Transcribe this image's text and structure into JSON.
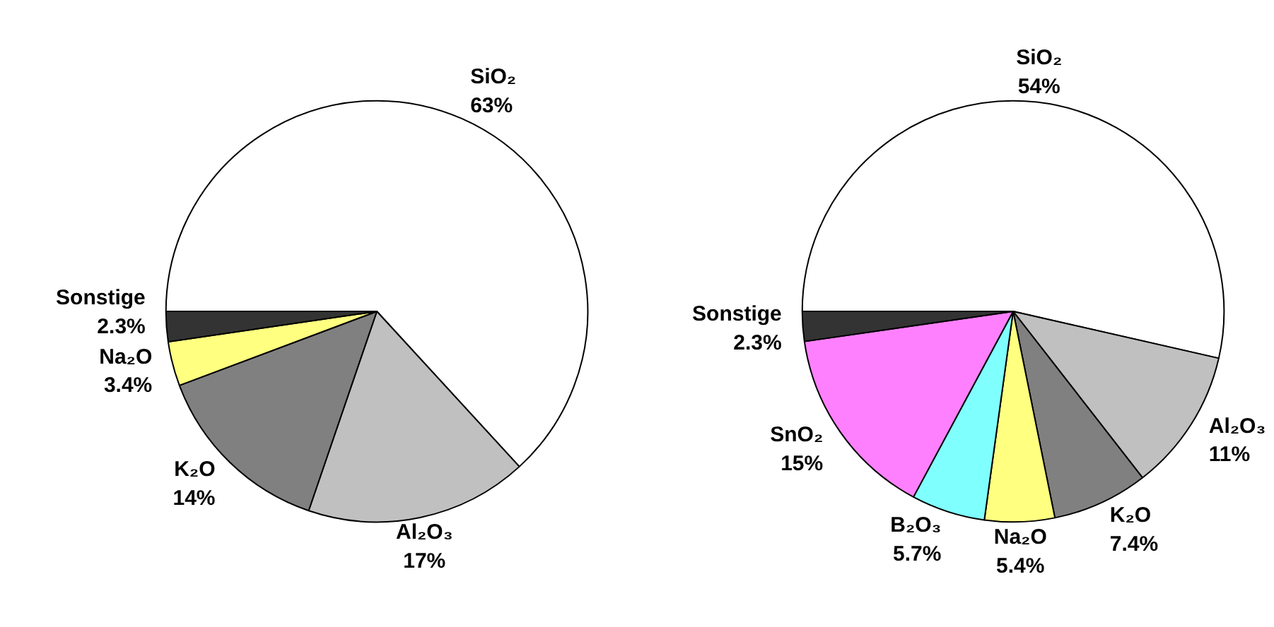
{
  "chart_data": [
    {
      "type": "pie",
      "categories": [
        "SiO₂",
        "Al₂O₃",
        "K₂O",
        "Na₂O",
        "Sonstige"
      ],
      "values": [
        63,
        17,
        14,
        3.4,
        2.3
      ],
      "colors": [
        "#ffffff",
        "#c0c0c0",
        "#808080",
        "#ffff80",
        "#333333"
      ],
      "value_labels": [
        "63%",
        "17%",
        "14%",
        "3.4%",
        "2.3%"
      ]
    },
    {
      "type": "pie",
      "categories": [
        "SiO₂",
        "Al₂O₃",
        "K₂O",
        "Na₂O",
        "B₂O₃",
        "SnO₂",
        "Sonstige"
      ],
      "values": [
        54,
        11,
        7.4,
        5.4,
        5.7,
        15,
        2.3
      ],
      "colors": [
        "#ffffff",
        "#c0c0c0",
        "#808080",
        "#ffff80",
        "#80ffff",
        "#ff80ff",
        "#333333"
      ],
      "value_labels": [
        "54%",
        "11%",
        "7.4%",
        "5.4%",
        "5.7%",
        "15%",
        "2.3%"
      ]
    }
  ]
}
